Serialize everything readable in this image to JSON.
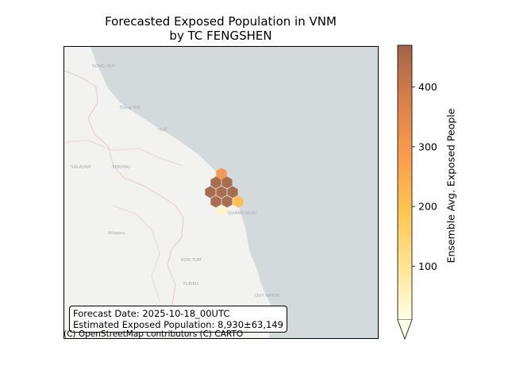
{
  "title": {
    "line1": "Forecasted Exposed Population in VNM",
    "line2": "by TC FENGSHEN"
  },
  "info_box": {
    "forecast_date": "Forecast Date: 2025-10-18_00UTC",
    "exposed_population": "Estimated Exposed Population: 8,930±63,149"
  },
  "attribution": "(C) OpenStreetMap contributors (C) CARTO",
  "map": {
    "place_labels": [
      "SALAVAN",
      "SEKONG",
      "HUẾ",
      "QUẢNG NGÃI",
      "KON TUM",
      "PLEIKU",
      "QUY NHƠN"
    ],
    "colors": {
      "sea": "#d4dadc",
      "land": "#f2f3f1",
      "border": "#e8c8c8"
    },
    "exposure_hexagons_values": [
      300,
      465,
      465,
      465,
      465,
      465,
      465,
      465,
      210,
      40
    ]
  },
  "colorbar": {
    "label": "Ensemble Avg. Exposed People",
    "ticks": [
      "100",
      "200",
      "300",
      "400"
    ],
    "min": 10,
    "max": 470,
    "extend": "min",
    "colors": [
      "#ffffe5",
      "#fee391",
      "#fec44f",
      "#f99b4f",
      "#d9804a",
      "#a06448"
    ]
  }
}
